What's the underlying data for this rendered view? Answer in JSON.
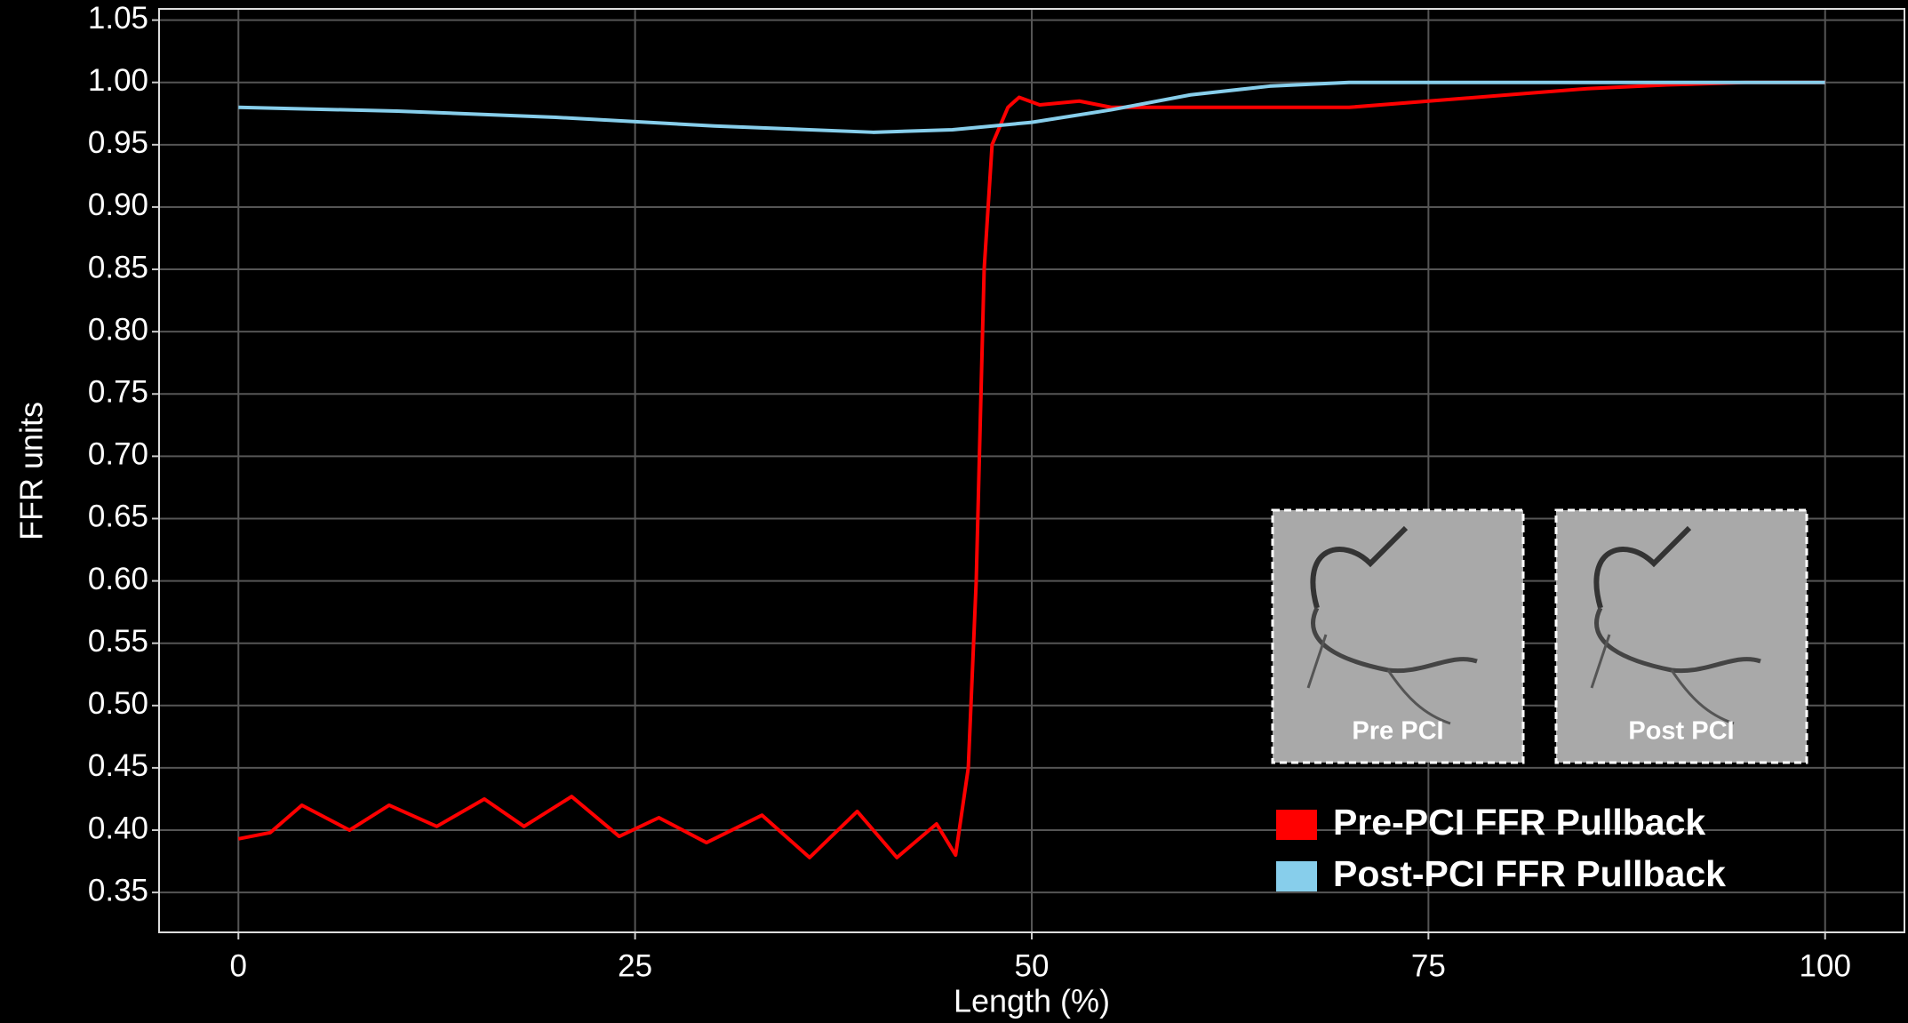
{
  "chart_data": {
    "type": "line",
    "x_label": "Length (%)",
    "y_label": "FFR units",
    "xlim": [
      -5,
      105
    ],
    "ylim": [
      0.318,
      1.059
    ],
    "xticks": [
      0,
      25,
      50,
      75,
      100
    ],
    "yticks": [
      0.35,
      {
        "value": 0.4,
        "label": "0.40"
      },
      0.45,
      {
        "value": 0.5,
        "label": "0.50"
      },
      0.55,
      {
        "value": 0.6,
        "label": "0.60"
      },
      0.65,
      {
        "value": 0.7,
        "label": "0.70"
      },
      0.75,
      {
        "value": 0.8,
        "label": "0.80"
      },
      0.85,
      {
        "value": 0.9,
        "label": "0.90"
      },
      0.95,
      {
        "value": 1,
        "label": "1.00"
      },
      1.05
    ],
    "grid": true,
    "legend": "bottom-right",
    "annotations": [
      "Pre PCI",
      "Post PCI"
    ],
    "series": [
      {
        "name": "Pre-PCI FFR Pullback",
        "color": "#ff0000",
        "x": [
          0,
          2,
          4,
          7,
          9.5,
          12.5,
          15.5,
          18,
          21,
          24,
          26.5,
          29.5,
          33,
          36,
          39,
          41.5,
          44,
          45.2,
          46,
          46.5,
          47,
          47.5,
          48.5,
          49.2,
          50.5,
          53,
          55,
          60,
          65,
          70,
          75,
          80,
          85,
          90,
          95,
          100
        ],
        "values": [
          0.393,
          0.398,
          0.42,
          0.4,
          0.42,
          0.403,
          0.425,
          0.403,
          0.427,
          0.395,
          0.41,
          0.39,
          0.412,
          0.378,
          0.415,
          0.378,
          0.405,
          0.38,
          0.45,
          0.6,
          0.85,
          0.95,
          0.98,
          0.988,
          0.982,
          0.985,
          0.98,
          0.98,
          0.98,
          0.98,
          0.985,
          0.99,
          0.995,
          0.998,
          1.0,
          1.0
        ]
      },
      {
        "name": "Post-PCI FFR Pullback",
        "color": "#87ceeb",
        "x": [
          0,
          10,
          20,
          30,
          40,
          45,
          50,
          55,
          60,
          65,
          70,
          80,
          90,
          100
        ],
        "values": [
          0.98,
          0.977,
          0.972,
          0.965,
          0.96,
          0.962,
          0.968,
          0.978,
          0.99,
          0.997,
          1.0,
          1.0,
          1.0,
          1.0
        ]
      }
    ]
  }
}
